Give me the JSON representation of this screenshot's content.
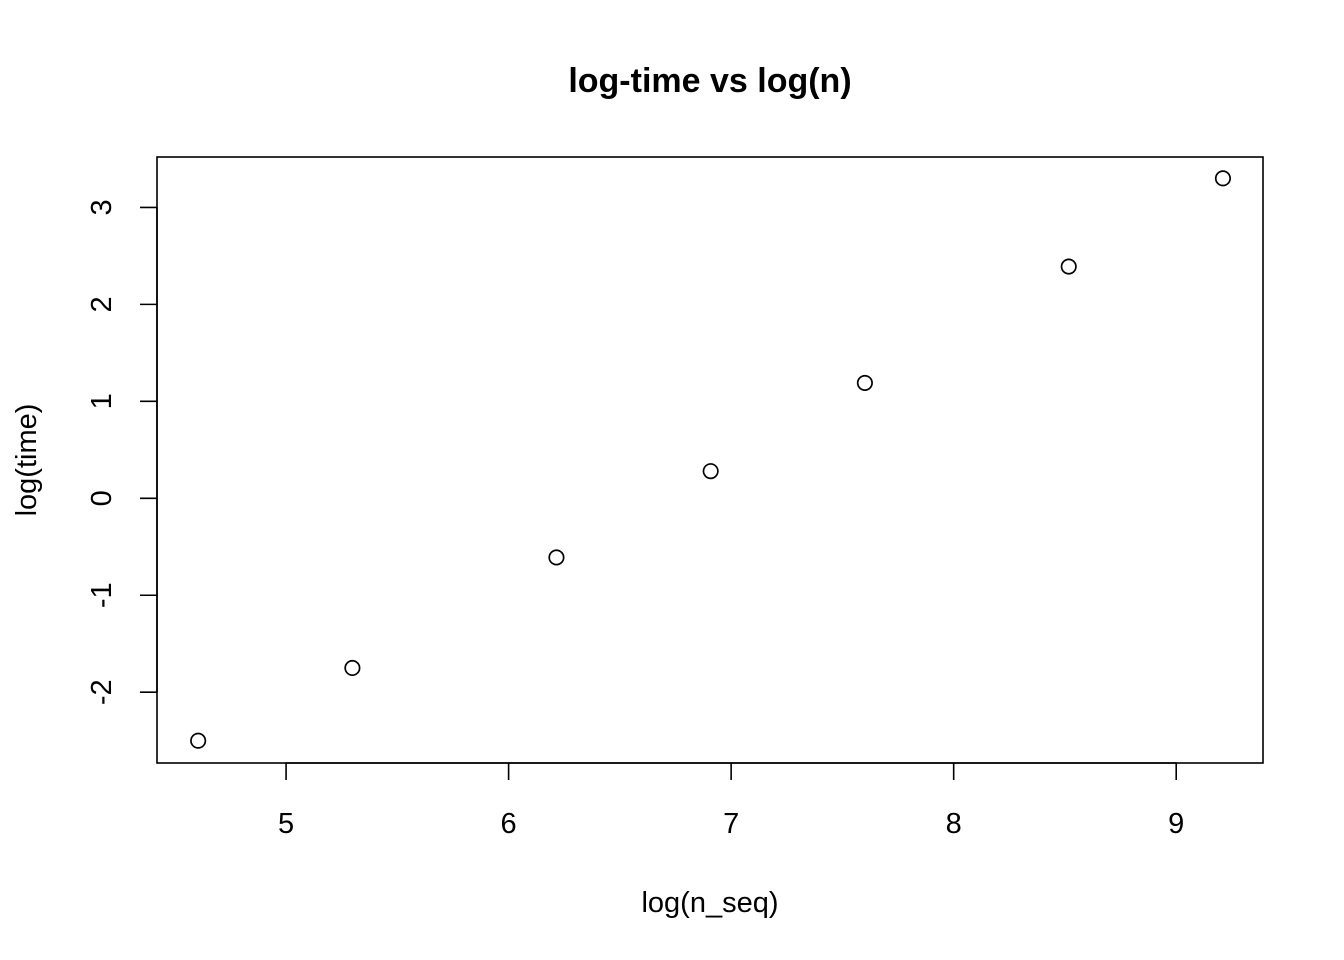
{
  "chart_data": {
    "type": "scatter",
    "title": "log-time vs log(n)",
    "xlabel": "log(n_seq)",
    "ylabel": "log(time)",
    "xlim": [
      4.42,
      9.39
    ],
    "ylim": [
      -2.73,
      3.52
    ],
    "x_ticks": [
      5,
      6,
      7,
      8,
      9
    ],
    "y_ticks": [
      -2,
      -1,
      0,
      1,
      2,
      3
    ],
    "x_tick_labels": [
      "5",
      "6",
      "7",
      "8",
      "9"
    ],
    "y_tick_labels": [
      "-2",
      "-1",
      "0",
      "1",
      "2",
      "3"
    ],
    "grid": false,
    "marker": "open-circle",
    "colors": {
      "marker": "#000000",
      "frame": "#000000",
      "background": "#ffffff"
    },
    "points": [
      {
        "x": 4.605,
        "y": -2.5
      },
      {
        "x": 5.298,
        "y": -1.75
      },
      {
        "x": 6.215,
        "y": -0.61
      },
      {
        "x": 6.908,
        "y": 0.28
      },
      {
        "x": 7.601,
        "y": 1.19
      },
      {
        "x": 8.517,
        "y": 2.39
      },
      {
        "x": 9.21,
        "y": 3.3
      }
    ]
  }
}
